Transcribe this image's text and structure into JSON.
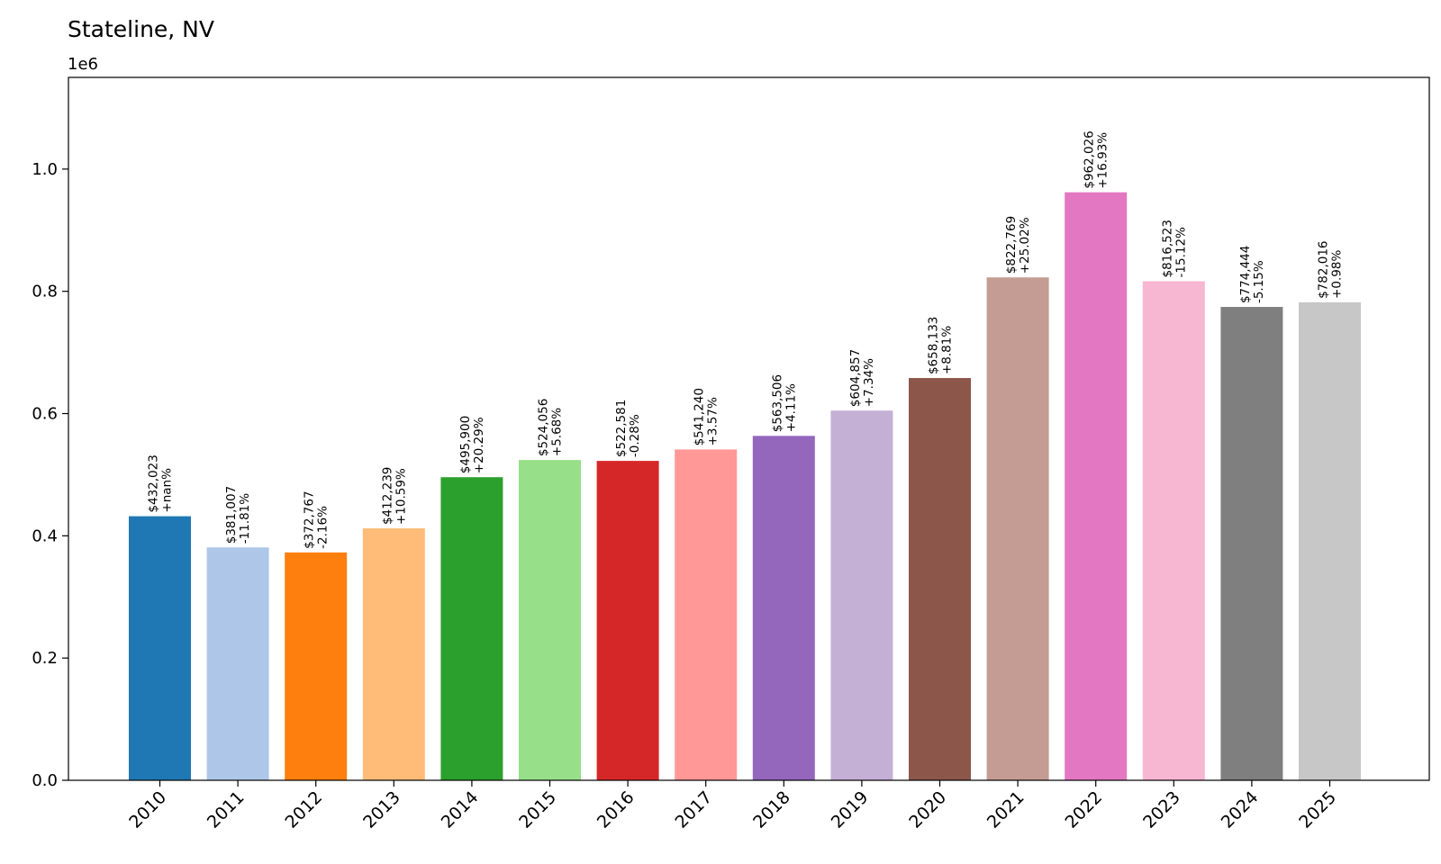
{
  "chart_data": {
    "type": "bar",
    "title": "Stateline, NV",
    "offset_label": "1e6",
    "xlabel": "",
    "ylabel": "",
    "ylim": [
      0,
      1150000
    ],
    "yticks": [
      0.0,
      0.2,
      0.4,
      0.6,
      0.8,
      1.0
    ],
    "ytick_labels": [
      "0.0",
      "0.2",
      "0.4",
      "0.6",
      "0.8",
      "1.0"
    ],
    "categories": [
      "2010",
      "2011",
      "2012",
      "2013",
      "2014",
      "2015",
      "2016",
      "2017",
      "2018",
      "2019",
      "2020",
      "2021",
      "2022",
      "2023",
      "2024",
      "2025"
    ],
    "values": [
      432023,
      381007,
      372767,
      412239,
      495900,
      524056,
      522581,
      541240,
      563506,
      604857,
      658133,
      822769,
      962026,
      816523,
      774444,
      782016
    ],
    "value_labels": [
      "$432,023",
      "$381,007",
      "$372,767",
      "$412,239",
      "$495,900",
      "$524,056",
      "$522,581",
      "$541,240",
      "$563,506",
      "$604,857",
      "$658,133",
      "$822,769",
      "$962,026",
      "$816,523",
      "$774,444",
      "$782,016"
    ],
    "change_labels": [
      "+nan%",
      "-11.81%",
      "-2.16%",
      "+10.59%",
      "+20.29%",
      "+5.68%",
      "-0.28%",
      "+3.57%",
      "+4.11%",
      "+7.34%",
      "+8.81%",
      "+25.02%",
      "+16.93%",
      "-15.12%",
      "-5.15%",
      "+0.98%"
    ],
    "colors": [
      "#1f77b4",
      "#aec7e8",
      "#ff7f0e",
      "#ffbb78",
      "#2ca02c",
      "#98df8a",
      "#d62728",
      "#ff9896",
      "#9467bd",
      "#c5b0d5",
      "#8c564b",
      "#c49c94",
      "#e377c2",
      "#f7b6d2",
      "#7f7f7f",
      "#c7c7c7"
    ],
    "grid": false,
    "legend": "none"
  }
}
